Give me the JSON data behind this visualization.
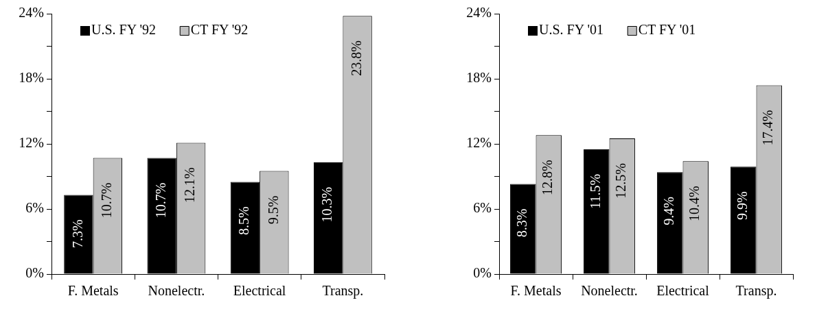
{
  "chart_data": [
    {
      "type": "bar",
      "categories": [
        "F. Metals",
        "Nonelectr.",
        "Electrical",
        "Transp."
      ],
      "series": [
        {
          "name": "U.S. FY '92",
          "color": "#000000",
          "values": [
            7.3,
            10.7,
            8.5,
            10.3
          ],
          "value_labels": [
            "7.3%",
            "10.7%",
            "8.5%",
            "10.3%"
          ]
        },
        {
          "name": "CT FY '92",
          "color": "#c0c0c0",
          "values": [
            10.7,
            12.1,
            9.5,
            23.8
          ],
          "value_labels": [
            "10.7%",
            "12.1%",
            "9.5%",
            "23.8%"
          ]
        }
      ],
      "ylim": [
        0,
        24
      ],
      "yticks": [
        {
          "value": 0,
          "label": "0%"
        },
        {
          "value": 3,
          "label": null
        },
        {
          "value": 6,
          "label": "6%"
        },
        {
          "value": 9,
          "label": null
        },
        {
          "value": 12,
          "label": "12%"
        },
        {
          "value": 15,
          "label": null
        },
        {
          "value": 18,
          "label": "18%"
        },
        {
          "value": 21,
          "label": null
        },
        {
          "value": 24,
          "label": "24%"
        }
      ],
      "grid": false,
      "legend": "top left"
    },
    {
      "type": "bar",
      "categories": [
        "F. Metals",
        "Nonelectr.",
        "Electrical",
        "Transp."
      ],
      "series": [
        {
          "name": "U.S. FY '01",
          "color": "#000000",
          "values": [
            8.3,
            11.5,
            9.4,
            9.9
          ],
          "value_labels": [
            "8.3%",
            "11.5%",
            "9.4%",
            "9.9%"
          ]
        },
        {
          "name": "CT FY '01",
          "color": "#c0c0c0",
          "values": [
            12.8,
            12.5,
            10.4,
            17.4
          ],
          "value_labels": [
            "12.8%",
            "12.5%",
            "10.4%",
            "17.4%"
          ]
        }
      ],
      "ylim": [
        0,
        24
      ],
      "yticks": [
        {
          "value": 0,
          "label": "0%"
        },
        {
          "value": 3,
          "label": null
        },
        {
          "value": 6,
          "label": "6%"
        },
        {
          "value": 9,
          "label": null
        },
        {
          "value": 12,
          "label": "12%"
        },
        {
          "value": 15,
          "label": null
        },
        {
          "value": 18,
          "label": "18%"
        },
        {
          "value": 21,
          "label": null
        },
        {
          "value": 24,
          "label": "24%"
        }
      ],
      "grid": false,
      "legend": "top left"
    }
  ]
}
